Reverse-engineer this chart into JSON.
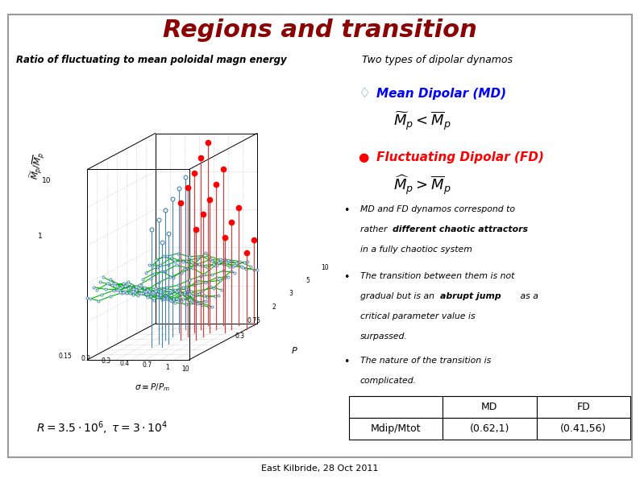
{
  "title": "Regions and transition",
  "title_color": "#8B0000",
  "title_fontsize": 22,
  "left_label": "Ratio of fluctuating to mean poloidal magn energy",
  "right_label": "Two types of dipolar dynamos",
  "md_label": "Mean Dipolar (MD)",
  "fd_label": "Fluctuating Dipolar (FD)",
  "bullet1a": "MD and FD dynamos correspond to",
  "bullet1b": "rather ",
  "bullet1b_bold": "different chaotic attractors",
  "bullet1c": "in a fully chaotioc system",
  "bullet2a": "The transition between them is not",
  "bullet2b": "gradual but is an ",
  "bullet2b_bold": "abrupt jump",
  "bullet2c": " as a",
  "bullet2d": "critical parameter value is",
  "bullet2e": "surpassed.",
  "bullet3a": "The nature of the transition is",
  "bullet3b": "complicated.",
  "table_col1": "",
  "table_col2": "MD",
  "table_col3": "FD",
  "table_row1": "Mdip/Mtot",
  "table_row2": "(0.62,1)",
  "table_row3": "(0.41,56)",
  "footer": "East Kilbride, 28 Oct 2011",
  "bg_color": "#FFFFFF",
  "border_color": "#999999",
  "green": "#00BB00",
  "gray": "#AAAAAA"
}
